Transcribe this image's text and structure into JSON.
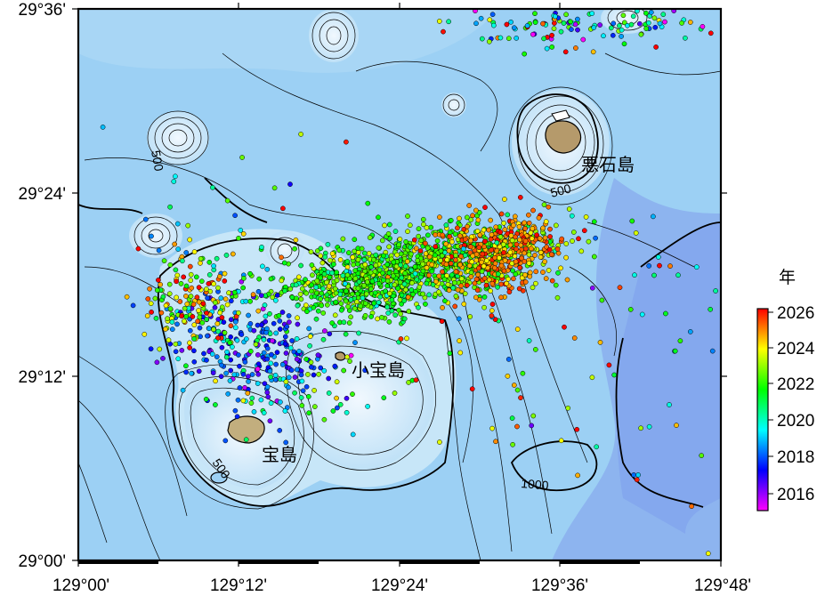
{
  "map": {
    "lat_labels": [
      "29°36'",
      "29°24'",
      "29°12'",
      "29°00'"
    ],
    "lon_labels": [
      "129°00'",
      "129°12'",
      "129°24'",
      "129°36'",
      "129°48'"
    ],
    "islands": [
      {
        "name": "悪石島"
      },
      {
        "name": "小宝島"
      },
      {
        "name": "宝島"
      }
    ],
    "contour_labels": [
      {
        "text": "500"
      },
      {
        "text": "500"
      },
      {
        "text": "500"
      },
      {
        "text": "1000"
      }
    ],
    "colors": {
      "sea_shallow": "#d6ecfb",
      "sea_mid": "#8fc8f2",
      "sea_deep": "#7fa6ee",
      "land": "#b9a675",
      "contour": "#000000"
    }
  },
  "colorbar": {
    "title": "年",
    "tick_labels": [
      "2026",
      "2024",
      "2022",
      "2020",
      "2018",
      "2016"
    ],
    "range": [
      2015,
      2026
    ],
    "scale": [
      "#ff00ff",
      "#0000ff",
      "#00ffff",
      "#00ff00",
      "#ffff00",
      "#ff0000"
    ]
  },
  "epicenters": {
    "legend_year_range": [
      2015,
      2026
    ],
    "description_clusters": [
      {
        "region": "main swarm",
        "dominant_years": "2021-2025"
      },
      {
        "region": "northwest of 小宝島",
        "dominant_years": "2016-2019"
      },
      {
        "region": "west of 悪石島",
        "dominant_years": "2024-2026"
      }
    ]
  }
}
